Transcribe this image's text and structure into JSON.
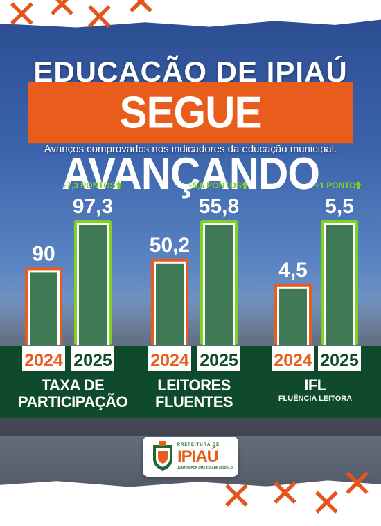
{
  "header": {
    "title_line1": "EDUCAÇÃO DE IPIAÚ",
    "title_line2": "SEGUE AVANÇANDO",
    "subtitle": "Avanços comprovados nos indicadores da educação municipal."
  },
  "colors": {
    "orange": "#e85c1c",
    "green_bright": "#7ed321",
    "bar_fill": "#3f7a55",
    "band": "#0e4a2b"
  },
  "chart_data": [
    {
      "type": "bar",
      "categories": [
        "2024",
        "2025"
      ],
      "values": [
        90,
        97.3
      ],
      "value_labels": [
        "90",
        "97,3"
      ],
      "delta_label": "+7,3 PONTOS",
      "title": "TAXA DE PARTICIPAÇÃO",
      "subtitle": "",
      "ylim": [
        0,
        100
      ]
    },
    {
      "type": "bar",
      "categories": [
        "2024",
        "2025"
      ],
      "values": [
        50.2,
        55.8
      ],
      "value_labels": [
        "50,2",
        "55,8"
      ],
      "delta_label": "+5,6 PONTOS",
      "title": "LEITORES FLUENTES",
      "subtitle": "",
      "ylim": [
        0,
        100
      ]
    },
    {
      "type": "bar",
      "categories": [
        "2024",
        "2025"
      ],
      "values": [
        4.5,
        5.5
      ],
      "value_labels": [
        "4,5",
        "5,5"
      ],
      "delta_label": "+1 PONTO",
      "title": "IFL",
      "subtitle": "FLUÊNCIA LEITORA",
      "ylim": [
        0,
        5.5
      ]
    }
  ],
  "logo": {
    "top": "PREFEITURA DE",
    "name": "IPIAÚ",
    "tagline": "JUNTOS POR UMA CIDADE MODELO"
  }
}
